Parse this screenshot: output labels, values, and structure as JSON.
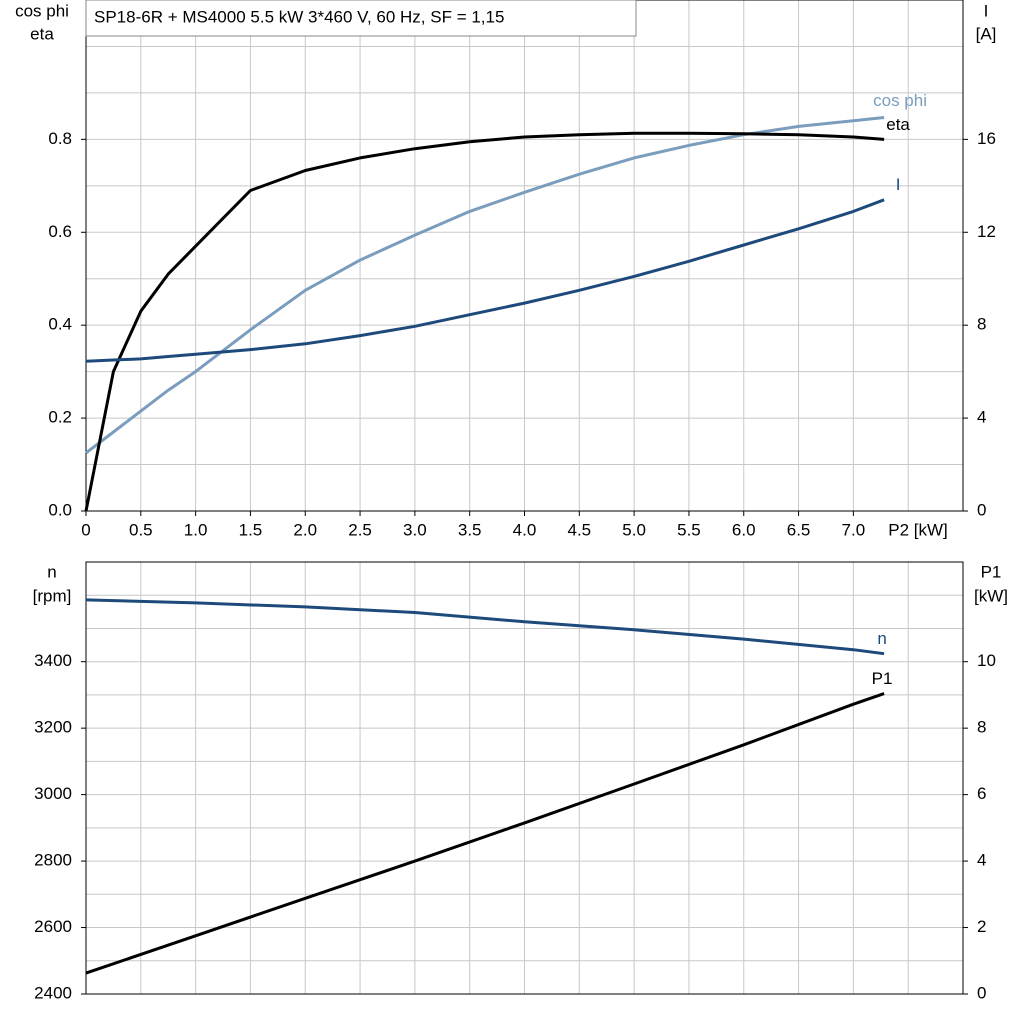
{
  "chart_data": [
    {
      "type": "line",
      "title": "SP18-6R + MS4000   5.5 kW   3*460 V, 60 Hz, SF = 1,15",
      "ylabel": [
        "cos phi",
        "eta"
      ],
      "y2label": [
        "I",
        "[A]"
      ],
      "xlabel": "P2 [kW]",
      "x": [
        0,
        0.25,
        0.5,
        0.75,
        1,
        1.5,
        2,
        2.5,
        3,
        3.5,
        4,
        4.5,
        5,
        5.5,
        6,
        6.5,
        7,
        7.28
      ],
      "xlim": [
        0,
        8
      ],
      "xticks": [
        0,
        0.5,
        {
          "value": 1,
          "label": "1.0"
        },
        1.5,
        {
          "value": 2,
          "label": "2.0"
        },
        2.5,
        {
          "value": 3,
          "label": "3.0"
        },
        3.5,
        {
          "value": 4,
          "label": "4.0"
        },
        4.5,
        {
          "value": 5,
          "label": "5.0"
        },
        5.5,
        {
          "value": 6,
          "label": "6.0"
        },
        6.5,
        {
          "value": 7,
          "label": "7.0"
        }
      ],
      "xgrid": [
        0.5,
        1,
        1.5,
        2,
        2.5,
        3,
        3.5,
        4,
        4.5,
        5,
        5.5,
        6,
        6.5,
        7,
        7.5
      ],
      "ylim": [
        0,
        1.1
      ],
      "yticks": [
        {
          "value": 0,
          "label": "0.0"
        },
        0.2,
        0.4,
        0.6,
        0.8
      ],
      "ygrid": [
        0.1,
        0.2,
        0.3,
        0.4,
        0.5,
        0.6,
        0.7,
        0.8,
        0.9,
        1.0
      ],
      "y2lim": [
        0,
        22
      ],
      "y2ticks": [
        0,
        4,
        8,
        12,
        16
      ],
      "series": [
        {
          "name": "cos phi",
          "color": "#7b9dbd",
          "values": [
            0.125,
            0.17,
            0.215,
            0.26,
            0.3,
            0.39,
            0.475,
            0.54,
            0.594,
            0.645,
            0.686,
            0.725,
            0.76,
            0.787,
            0.81,
            0.828,
            0.84,
            0.847
          ]
        },
        {
          "name": "eta",
          "color": "#000000",
          "values": [
            0,
            0.3,
            0.43,
            0.51,
            0.57,
            0.69,
            0.733,
            0.76,
            0.78,
            0.795,
            0.805,
            0.81,
            0.813,
            0.813,
            0.812,
            0.81,
            0.805,
            0.8
          ]
        },
        {
          "name": "I",
          "color": "#1d4a7a",
          "axis": "y2",
          "values": [
            6.45,
            6.5,
            6.55,
            6.65,
            6.75,
            6.95,
            7.2,
            7.55,
            7.95,
            8.45,
            8.95,
            9.5,
            10.1,
            10.75,
            11.45,
            12.15,
            12.9,
            13.4
          ]
        }
      ]
    },
    {
      "type": "line",
      "ylabel": [
        "n",
        "[rpm]"
      ],
      "y2label": [
        "P1",
        "[kW]"
      ],
      "x": [
        0,
        1,
        2,
        3,
        4,
        5,
        6,
        7,
        7.28
      ],
      "xlim": [
        0,
        8
      ],
      "xgrid": [
        0.5,
        1,
        1.5,
        2,
        2.5,
        3,
        3.5,
        4,
        4.5,
        5,
        5.5,
        6,
        6.5,
        7,
        7.5
      ],
      "ylim": [
        2400,
        3700
      ],
      "yticks": [
        2400,
        2600,
        2800,
        3000,
        3200,
        3400
      ],
      "ygrid": [
        2500,
        2600,
        2700,
        2800,
        2900,
        3000,
        3100,
        3200,
        3300,
        3400,
        3500,
        3600
      ],
      "y2lim": [
        0,
        13
      ],
      "y2ticks": [
        0,
        2,
        4,
        6,
        8,
        10
      ],
      "series": [
        {
          "name": "n",
          "color": "#1d4a7a",
          "values": [
            3586,
            3577,
            3565,
            3548,
            3520,
            3496,
            3468,
            3436,
            3424
          ]
        },
        {
          "name": "P1",
          "color": "#000000",
          "axis": "y2",
          "values": [
            0.63,
            1.75,
            2.88,
            4.0,
            5.15,
            6.32,
            7.5,
            8.72,
            9.04
          ]
        }
      ]
    }
  ]
}
